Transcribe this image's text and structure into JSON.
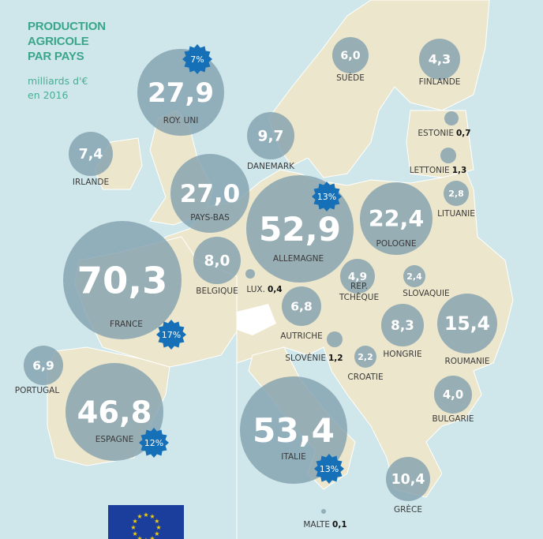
{
  "header": {
    "title": "PRODUCTION\nAGRICOLE\nPAR PAYS",
    "subtitle": "milliards d'€\nen 2016"
  },
  "colors": {
    "sea": "#cfe7ea",
    "land": "#ece6cc",
    "bubble": "#7f9ead",
    "badge": "#1670b8",
    "title": "#3aa58a"
  },
  "countries": [
    {
      "id": "uk",
      "name": "ROY. UNI",
      "value": "27,9",
      "badge": "7%"
    },
    {
      "id": "ie",
      "name": "IRLANDE",
      "value": "7,4"
    },
    {
      "id": "nl",
      "name": "PAYS-BAS",
      "value": "27,0"
    },
    {
      "id": "dk",
      "name": "DANEMARK",
      "value": "9,7"
    },
    {
      "id": "se",
      "name": "SUÈDE",
      "value": "6,0"
    },
    {
      "id": "fi",
      "name": "FINLANDE",
      "value": "4,3"
    },
    {
      "id": "ee",
      "name": "ESTONIE",
      "value": "0,7",
      "inline": true
    },
    {
      "id": "lv",
      "name": "LETTONIE",
      "value": "1,3",
      "inline": true
    },
    {
      "id": "lt",
      "name": "LITUANIE",
      "value": "2,8"
    },
    {
      "id": "de",
      "name": "ALLEMAGNE",
      "value": "52,9",
      "badge": "13%"
    },
    {
      "id": "pl",
      "name": "POLOGNE",
      "value": "22,4"
    },
    {
      "id": "be",
      "name": "BELGIQUE",
      "value": "8,0"
    },
    {
      "id": "lu",
      "name": "LUX.",
      "value": "0,4",
      "inline": true
    },
    {
      "id": "fr",
      "name": "FRANCE",
      "value": "70,3",
      "badge": "17%"
    },
    {
      "id": "cz",
      "name": "REP.\nTCHÈQUE",
      "value": "4,9"
    },
    {
      "id": "sk",
      "name": "SLOVAQUIE",
      "value": "2,4"
    },
    {
      "id": "at",
      "name": "AUTRICHE",
      "value": "6,8"
    },
    {
      "id": "si",
      "name": "SLOVÉNIE",
      "value": "1,2",
      "inline": true
    },
    {
      "id": "hr",
      "name": "CROATIE",
      "value": "2,2"
    },
    {
      "id": "hu",
      "name": "HONGRIE",
      "value": "8,3"
    },
    {
      "id": "ro",
      "name": "ROUMANIE",
      "value": "15,4"
    },
    {
      "id": "pt",
      "name": "PORTUGAL",
      "value": "6,9"
    },
    {
      "id": "es",
      "name": "ESPAGNE",
      "value": "46,8",
      "badge": "12%"
    },
    {
      "id": "it",
      "name": "ITALIE",
      "value": "53,4",
      "badge": "13%"
    },
    {
      "id": "bg",
      "name": "BULGARIE",
      "value": "4,0"
    },
    {
      "id": "gr",
      "name": "GRÈCE",
      "value": "10,4"
    },
    {
      "id": "mt",
      "name": "MALTE",
      "value": "0,1",
      "inline": true
    }
  ]
}
